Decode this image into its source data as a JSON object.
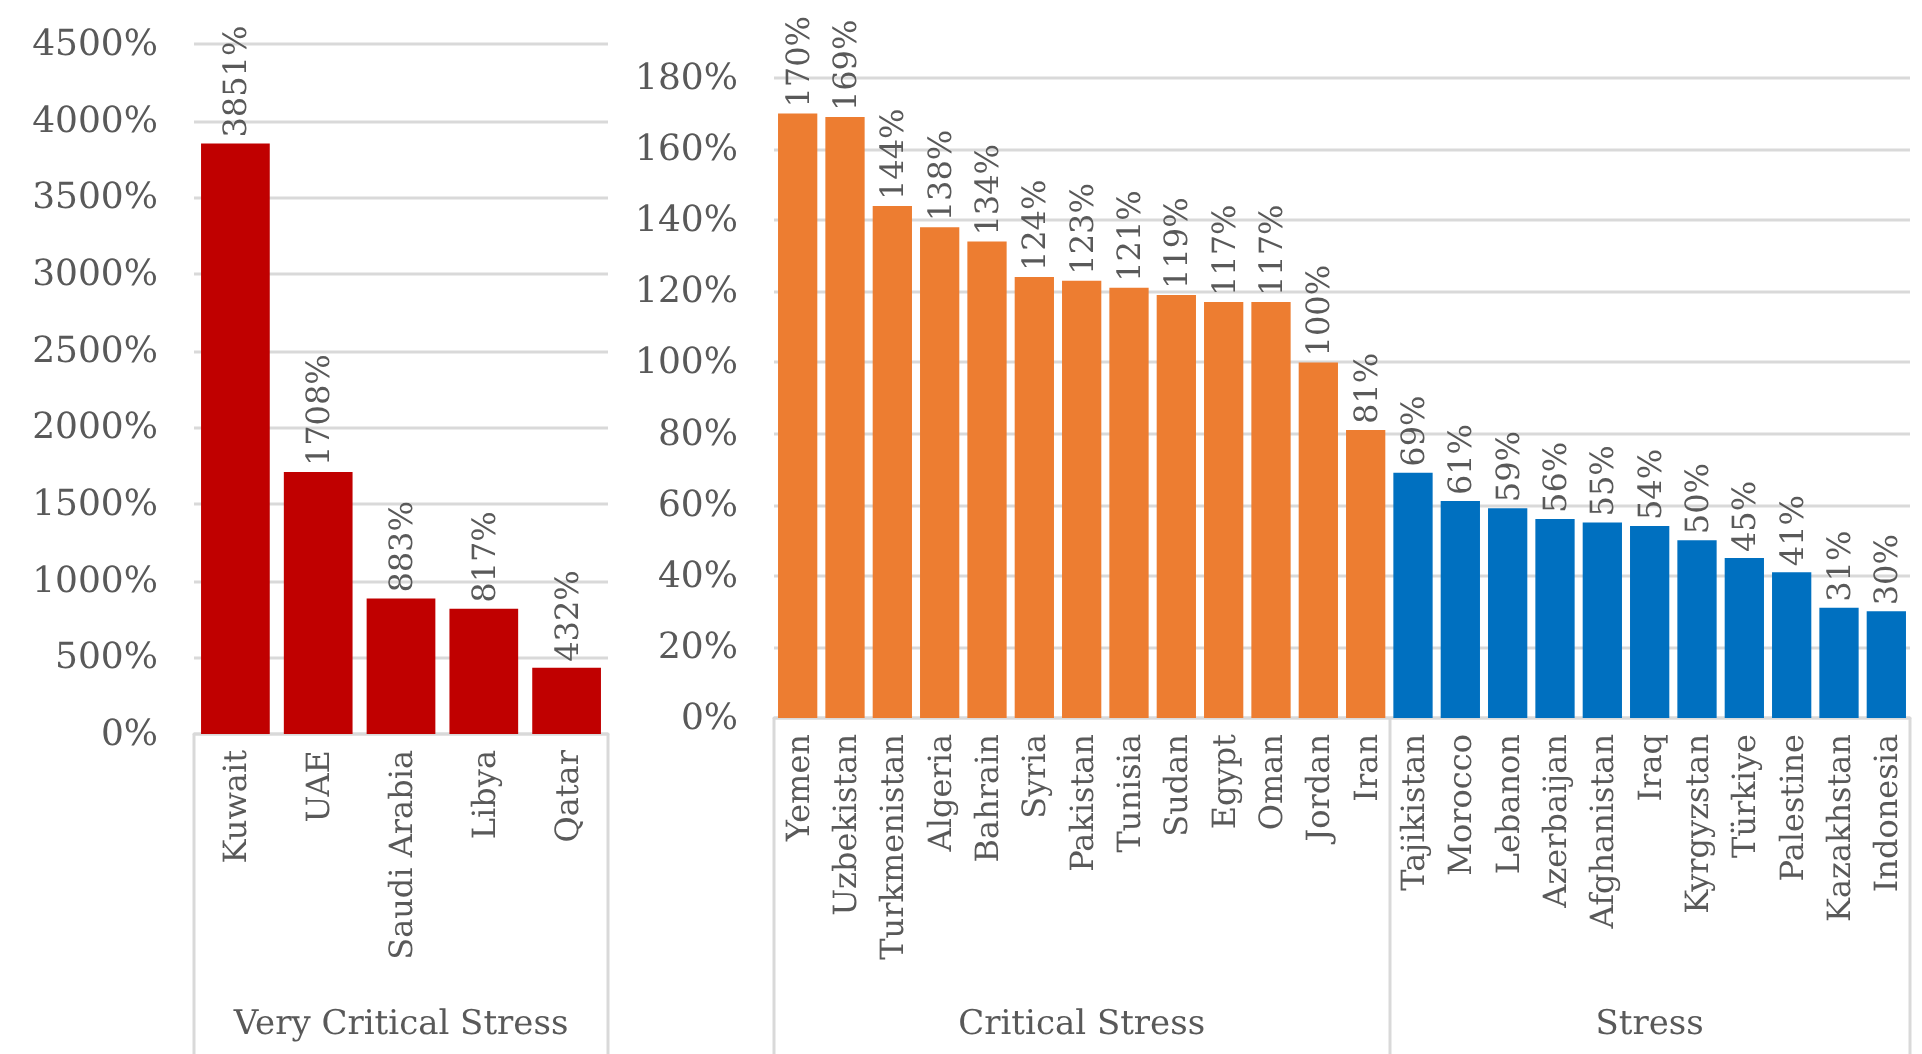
{
  "chart_data": [
    {
      "type": "bar",
      "categories": [
        "Kuwait",
        "UAE",
        "Saudi Arabia",
        "Libya",
        "Qatar"
      ],
      "values": [
        3851,
        1708,
        883,
        817,
        432
      ],
      "color": "#c00000",
      "value_labels": [
        "3851%",
        "1708%",
        "883%",
        "817%",
        "432%"
      ],
      "annotations": [
        "Very Critical Stress"
      ],
      "ylim": [
        0,
        4500
      ],
      "yticks": [
        {
          "value": 0,
          "label": "0%"
        },
        {
          "value": 500,
          "label": "500%"
        },
        {
          "value": 1000,
          "label": "1000%"
        },
        {
          "value": 1500,
          "label": "1500%"
        },
        {
          "value": 2000,
          "label": "2000%"
        },
        {
          "value": 2500,
          "label": "2500%"
        },
        {
          "value": 3000,
          "label": "3000%"
        },
        {
          "value": 3500,
          "label": "3500%"
        },
        {
          "value": 4000,
          "label": "4000%"
        },
        {
          "value": 4500,
          "label": "4500%"
        }
      ],
      "grid": "y"
    },
    {
      "type": "bar",
      "categories": [
        "Yemen",
        "Uzbekistan",
        "Turkmenistan",
        "Algeria",
        "Bahrain",
        "Syria",
        "Pakistan",
        "Tunisia",
        "Sudan",
        "Egypt",
        "Oman",
        "Jordan",
        "Iran",
        "Tajikistan",
        "Morocco",
        "Lebanon",
        "Azerbaijan",
        "Afghanistan",
        "Iraq",
        "Kyrgyzstan",
        "Türkiye",
        "Palestine",
        "Kazakhstan",
        "Indonesia"
      ],
      "series": [
        {
          "color": "#ed7d31",
          "values": [
            170,
            169,
            144,
            138,
            134,
            124,
            123,
            121,
            119,
            117,
            117,
            100,
            81,
            null,
            null,
            null,
            null,
            null,
            null,
            null,
            null,
            null,
            null,
            null
          ],
          "value_labels": [
            "170%",
            "169%",
            "144%",
            "138%",
            "134%",
            "124%",
            "123%",
            "121%",
            "119%",
            "117%",
            "117%",
            "100%",
            "81%",
            null,
            null,
            null,
            null,
            null,
            null,
            null,
            null,
            null,
            null,
            null
          ]
        },
        {
          "color": "#0070c0",
          "values": [
            null,
            null,
            null,
            null,
            null,
            null,
            null,
            null,
            null,
            null,
            null,
            null,
            null,
            69,
            61,
            59,
            56,
            55,
            54,
            50,
            45,
            41,
            31,
            30
          ],
          "value_labels": [
            null,
            null,
            null,
            null,
            null,
            null,
            null,
            null,
            null,
            null,
            null,
            null,
            null,
            "69%",
            "61%",
            "59%",
            "56%",
            "55%",
            "54%",
            "50%",
            "45%",
            "41%",
            "31%",
            "30%"
          ]
        }
      ],
      "annotations": [
        "Critical Stress",
        "Stress"
      ],
      "ylim": [
        0,
        180
      ],
      "yticks": [
        {
          "value": 0,
          "label": "0%"
        },
        {
          "value": 20,
          "label": "20%"
        },
        {
          "value": 40,
          "label": "40%"
        },
        {
          "value": 60,
          "label": "60%"
        },
        {
          "value": 80,
          "label": "80%"
        },
        {
          "value": 100,
          "label": "100%"
        },
        {
          "value": 120,
          "label": "120%"
        },
        {
          "value": 140,
          "label": "140%"
        },
        {
          "value": 160,
          "label": "160%"
        },
        {
          "value": 180,
          "label": "180%"
        }
      ],
      "grid": "y"
    }
  ]
}
